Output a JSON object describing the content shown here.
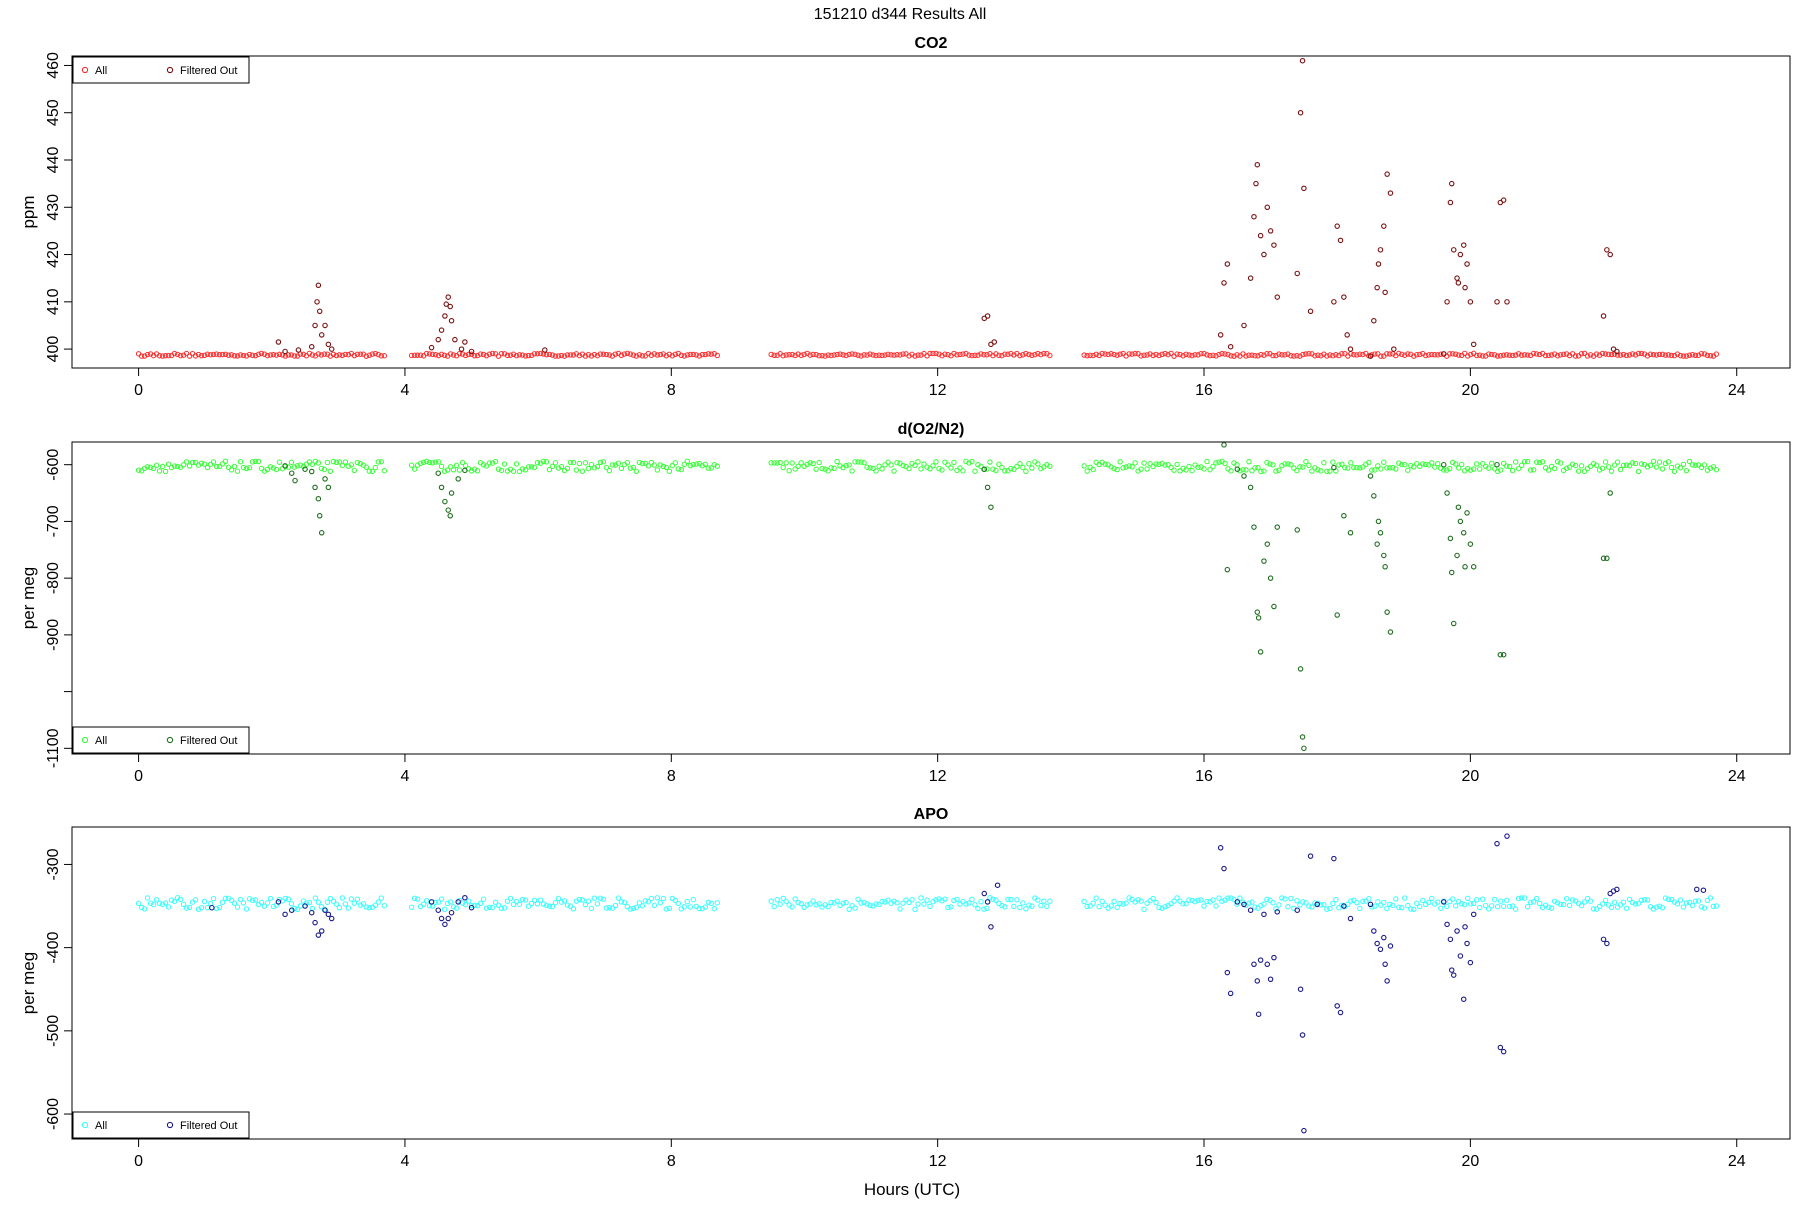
{
  "figure": {
    "title": "151210   d344   Results All",
    "xlabel": "Hours (UTC)"
  },
  "chart_data": [
    {
      "type": "scatter",
      "title": "CO2",
      "ylabel": "ppm",
      "xlim": [
        -1,
        24.8
      ],
      "ylim": [
        396,
        462
      ],
      "xticks": [
        0,
        4,
        8,
        12,
        16,
        20,
        24
      ],
      "yticks": [
        400,
        410,
        420,
        430,
        440,
        450,
        460
      ],
      "legend_position": "top-left",
      "colors": {
        "all": "#ff2a2a",
        "filtered": "#7a1010"
      },
      "series": [
        {
          "name": "All",
          "baseline": 398.8,
          "noise": 0.3,
          "ranges": [
            [
              0,
              3.7
            ],
            [
              4.1,
              8.7
            ],
            [
              9.5,
              13.7
            ],
            [
              14.2,
              23.7
            ]
          ]
        },
        {
          "name": "Filtered Out",
          "points": [
            [
              2.1,
              401.5
            ],
            [
              2.2,
              399.5
            ],
            [
              2.4,
              399.8
            ],
            [
              2.6,
              400.5
            ],
            [
              2.65,
              405
            ],
            [
              2.68,
              410
            ],
            [
              2.7,
              413.5
            ],
            [
              2.72,
              408
            ],
            [
              2.75,
              403
            ],
            [
              2.8,
              405
            ],
            [
              2.85,
              401
            ],
            [
              2.9,
              400
            ],
            [
              4.4,
              400.3
            ],
            [
              4.5,
              402
            ],
            [
              4.55,
              404
            ],
            [
              4.6,
              407
            ],
            [
              4.62,
              409.5
            ],
            [
              4.65,
              411
            ],
            [
              4.68,
              409
            ],
            [
              4.7,
              406
            ],
            [
              4.75,
              402
            ],
            [
              4.85,
              400
            ],
            [
              4.9,
              401.5
            ],
            [
              5.0,
              399.5
            ],
            [
              6.1,
              399.8
            ],
            [
              12.7,
              406.5
            ],
            [
              12.75,
              407
            ],
            [
              12.8,
              401
            ],
            [
              12.85,
              401.5
            ],
            [
              16.25,
              403
            ],
            [
              16.3,
              414
            ],
            [
              16.35,
              418
            ],
            [
              16.4,
              400.5
            ],
            [
              16.6,
              405
            ],
            [
              16.7,
              415
            ],
            [
              16.75,
              428
            ],
            [
              16.78,
              435
            ],
            [
              16.8,
              439
            ],
            [
              16.85,
              424
            ],
            [
              16.9,
              420
            ],
            [
              16.95,
              430
            ],
            [
              17.0,
              425
            ],
            [
              17.05,
              422
            ],
            [
              17.1,
              411
            ],
            [
              17.4,
              416
            ],
            [
              17.45,
              450
            ],
            [
              17.48,
              461
            ],
            [
              17.5,
              434
            ],
            [
              17.6,
              408
            ],
            [
              17.95,
              410
            ],
            [
              18.0,
              426
            ],
            [
              18.05,
              423
            ],
            [
              18.1,
              411
            ],
            [
              18.15,
              403
            ],
            [
              18.2,
              400
            ],
            [
              18.5,
              398.5
            ],
            [
              18.55,
              406
            ],
            [
              18.6,
              413
            ],
            [
              18.62,
              418
            ],
            [
              18.65,
              421
            ],
            [
              18.7,
              426
            ],
            [
              18.72,
              412
            ],
            [
              18.75,
              437
            ],
            [
              18.8,
              433
            ],
            [
              18.85,
              400
            ],
            [
              19.6,
              399
            ],
            [
              19.65,
              410
            ],
            [
              19.7,
              431
            ],
            [
              19.72,
              435
            ],
            [
              19.75,
              421
            ],
            [
              19.8,
              415
            ],
            [
              19.82,
              414
            ],
            [
              19.85,
              420
            ],
            [
              19.9,
              422
            ],
            [
              19.92,
              413
            ],
            [
              19.95,
              418
            ],
            [
              20.0,
              410
            ],
            [
              20.05,
              401
            ],
            [
              20.4,
              410
            ],
            [
              20.45,
              431
            ],
            [
              20.5,
              431.5
            ],
            [
              20.55,
              410
            ],
            [
              22.0,
              407
            ],
            [
              22.05,
              421
            ],
            [
              22.1,
              420
            ],
            [
              22.15,
              400
            ],
            [
              22.2,
              399.5
            ]
          ]
        }
      ]
    },
    {
      "type": "scatter",
      "title": "d(O2/N2)",
      "ylabel": "per meg",
      "xlim": [
        -1,
        24.8
      ],
      "ylim": [
        -1110,
        -560
      ],
      "xticks": [
        0,
        4,
        8,
        12,
        16,
        20,
        24
      ],
      "yticks": [
        -600,
        -700,
        -800,
        -900,
        -1100
      ],
      "ytick_labels": [
        "-600",
        "-700",
        "-800",
        "-900",
        "-1100"
      ],
      "extra_ytick": -1000,
      "legend_position": "bottom-left",
      "colors": {
        "all": "#33ff33",
        "filtered": "#1f6e1f"
      },
      "series": [
        {
          "name": "All",
          "baseline": -603,
          "noise": 9,
          "ranges": [
            [
              0,
              3.7
            ],
            [
              4.1,
              8.7
            ],
            [
              9.5,
              13.7
            ],
            [
              14.2,
              23.7
            ]
          ]
        },
        {
          "name": "Filtered Out",
          "points": [
            [
              2.2,
              -602
            ],
            [
              2.3,
              -615
            ],
            [
              2.35,
              -628
            ],
            [
              2.5,
              -608
            ],
            [
              2.6,
              -612
            ],
            [
              2.65,
              -640
            ],
            [
              2.7,
              -660
            ],
            [
              2.72,
              -690
            ],
            [
              2.75,
              -720
            ],
            [
              2.8,
              -625
            ],
            [
              2.85,
              -640
            ],
            [
              4.5,
              -615
            ],
            [
              4.55,
              -640
            ],
            [
              4.6,
              -665
            ],
            [
              4.65,
              -680
            ],
            [
              4.68,
              -690
            ],
            [
              4.7,
              -650
            ],
            [
              4.8,
              -625
            ],
            [
              4.9,
              -610
            ],
            [
              12.7,
              -608
            ],
            [
              12.75,
              -640
            ],
            [
              12.8,
              -675
            ],
            [
              16.3,
              -565
            ],
            [
              16.35,
              -785
            ],
            [
              16.5,
              -608
            ],
            [
              16.6,
              -620
            ],
            [
              16.7,
              -640
            ],
            [
              16.75,
              -710
            ],
            [
              16.8,
              -860
            ],
            [
              16.82,
              -870
            ],
            [
              16.85,
              -930
            ],
            [
              16.9,
              -770
            ],
            [
              16.95,
              -740
            ],
            [
              17.0,
              -800
            ],
            [
              17.05,
              -850
            ],
            [
              17.1,
              -710
            ],
            [
              17.4,
              -715
            ],
            [
              17.45,
              -960
            ],
            [
              17.48,
              -1080
            ],
            [
              17.5,
              -1100
            ],
            [
              17.95,
              -605
            ],
            [
              18.0,
              -865
            ],
            [
              18.1,
              -690
            ],
            [
              18.2,
              -720
            ],
            [
              18.5,
              -620
            ],
            [
              18.55,
              -655
            ],
            [
              18.6,
              -740
            ],
            [
              18.62,
              -700
            ],
            [
              18.65,
              -720
            ],
            [
              18.7,
              -760
            ],
            [
              18.72,
              -780
            ],
            [
              18.75,
              -860
            ],
            [
              18.8,
              -895
            ],
            [
              19.6,
              -600
            ],
            [
              19.65,
              -650
            ],
            [
              19.7,
              -730
            ],
            [
              19.72,
              -790
            ],
            [
              19.75,
              -880
            ],
            [
              19.8,
              -760
            ],
            [
              19.82,
              -675
            ],
            [
              19.85,
              -700
            ],
            [
              19.9,
              -720
            ],
            [
              19.92,
              -780
            ],
            [
              19.95,
              -685
            ],
            [
              20.0,
              -740
            ],
            [
              20.05,
              -780
            ],
            [
              20.4,
              -600
            ],
            [
              20.45,
              -935
            ],
            [
              20.5,
              -935
            ],
            [
              22.0,
              -765
            ],
            [
              22.05,
              -765
            ],
            [
              22.1,
              -650
            ]
          ]
        }
      ]
    },
    {
      "type": "scatter",
      "title": "APO",
      "ylabel": "per meg",
      "xlim": [
        -1,
        24.8
      ],
      "ylim": [
        -630,
        -255
      ],
      "xticks": [
        0,
        4,
        8,
        12,
        16,
        20,
        24
      ],
      "yticks": [
        -300,
        -400,
        -500,
        -600
      ],
      "legend_position": "bottom-left",
      "colors": {
        "all": "#33ffff",
        "filtered": "#1a1a8c"
      },
      "series": [
        {
          "name": "All",
          "baseline": -347,
          "noise": 7,
          "ranges": [
            [
              0,
              3.7
            ],
            [
              4.1,
              8.7
            ],
            [
              9.5,
              13.7
            ],
            [
              14.2,
              23.7
            ]
          ]
        },
        {
          "name": "Filtered Out",
          "points": [
            [
              1.1,
              -352
            ],
            [
              2.1,
              -345
            ],
            [
              2.2,
              -360
            ],
            [
              2.3,
              -355
            ],
            [
              2.5,
              -350
            ],
            [
              2.6,
              -358
            ],
            [
              2.65,
              -370
            ],
            [
              2.7,
              -385
            ],
            [
              2.75,
              -380
            ],
            [
              2.8,
              -355
            ],
            [
              2.85,
              -360
            ],
            [
              2.9,
              -365
            ],
            [
              4.4,
              -345
            ],
            [
              4.5,
              -355
            ],
            [
              4.55,
              -365
            ],
            [
              4.6,
              -372
            ],
            [
              4.65,
              -365
            ],
            [
              4.7,
              -358
            ],
            [
              4.8,
              -345
            ],
            [
              4.9,
              -340
            ],
            [
              5.0,
              -352
            ],
            [
              12.7,
              -335
            ],
            [
              12.75,
              -345
            ],
            [
              12.8,
              -375
            ],
            [
              12.9,
              -325
            ],
            [
              16.25,
              -280
            ],
            [
              16.3,
              -305
            ],
            [
              16.35,
              -430
            ],
            [
              16.4,
              -455
            ],
            [
              16.5,
              -345
            ],
            [
              16.6,
              -348
            ],
            [
              16.7,
              -355
            ],
            [
              16.75,
              -420
            ],
            [
              16.8,
              -440
            ],
            [
              16.82,
              -480
            ],
            [
              16.85,
              -415
            ],
            [
              16.9,
              -360
            ],
            [
              16.95,
              -420
            ],
            [
              17.0,
              -438
            ],
            [
              17.05,
              -412
            ],
            [
              17.1,
              -357
            ],
            [
              17.4,
              -355
            ],
            [
              17.45,
              -450
            ],
            [
              17.48,
              -505
            ],
            [
              17.5,
              -620
            ],
            [
              17.6,
              -290
            ],
            [
              17.7,
              -348
            ],
            [
              17.95,
              -293
            ],
            [
              18.0,
              -470
            ],
            [
              18.05,
              -478
            ],
            [
              18.1,
              -350
            ],
            [
              18.2,
              -365
            ],
            [
              18.5,
              -348
            ],
            [
              18.55,
              -380
            ],
            [
              18.6,
              -395
            ],
            [
              18.65,
              -402
            ],
            [
              18.7,
              -388
            ],
            [
              18.72,
              -420
            ],
            [
              18.75,
              -440
            ],
            [
              18.8,
              -398
            ],
            [
              19.6,
              -345
            ],
            [
              19.65,
              -372
            ],
            [
              19.7,
              -390
            ],
            [
              19.72,
              -427
            ],
            [
              19.75,
              -433
            ],
            [
              19.8,
              -380
            ],
            [
              19.85,
              -410
            ],
            [
              19.9,
              -462
            ],
            [
              19.92,
              -375
            ],
            [
              19.95,
              -395
            ],
            [
              20.0,
              -418
            ],
            [
              20.05,
              -360
            ],
            [
              20.4,
              -275
            ],
            [
              20.45,
              -520
            ],
            [
              20.5,
              -525
            ],
            [
              20.55,
              -266
            ],
            [
              22.0,
              -390
            ],
            [
              22.05,
              -395
            ],
            [
              22.1,
              -335
            ],
            [
              22.15,
              -332
            ],
            [
              22.2,
              -330
            ],
            [
              23.4,
              -330
            ],
            [
              23.5,
              -331
            ]
          ]
        }
      ]
    }
  ]
}
